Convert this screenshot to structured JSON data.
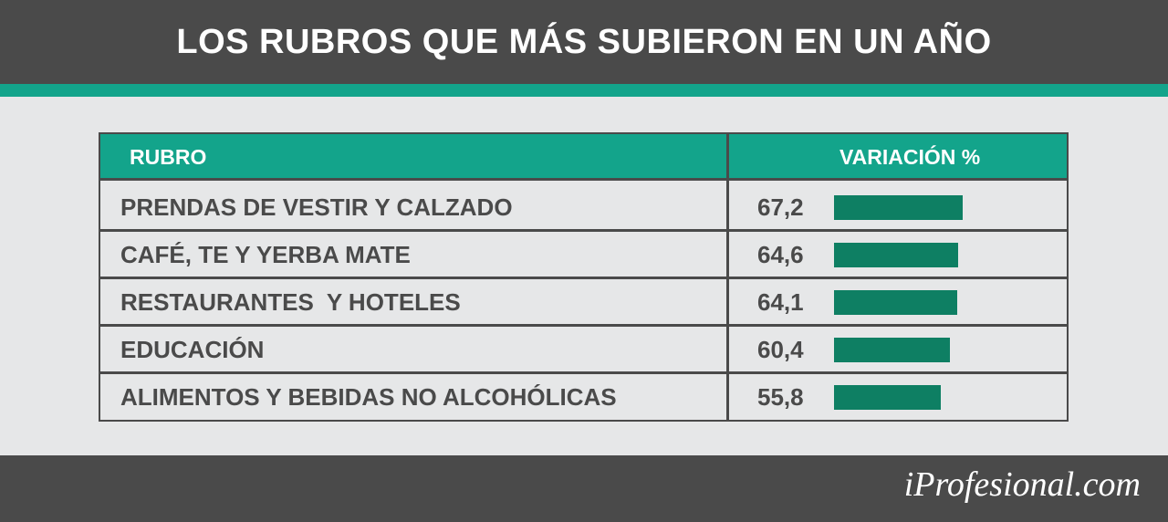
{
  "header": {
    "title": "LOS RUBROS QUE MÁS SUBIERON EN UN AÑO"
  },
  "colors": {
    "header_bg": "#4a4a4a",
    "accent": "#13a48b",
    "bar": "#0e7f63",
    "text": "#4a4a4a"
  },
  "chart_data": {
    "type": "table",
    "columns": [
      "RUBRO",
      "VARIACIÓN %"
    ],
    "categories": [
      "PRENDAS DE VESTIR Y CALZADO",
      "CAFÉ, TE Y YERBA MATE",
      "RESTAURANTES  Y HOTELES",
      "EDUCACIÓN",
      "ALIMENTOS Y BEBIDAS NO ALCOHÓLICAS"
    ],
    "labels": [
      "67,2",
      "64,6",
      "64,1",
      "60,4",
      "55,8"
    ],
    "values": [
      67.2,
      64.6,
      64.1,
      60.4,
      55.8
    ],
    "xlim": [
      0,
      100
    ]
  },
  "footer": {
    "logo": "iProfesional.com"
  }
}
